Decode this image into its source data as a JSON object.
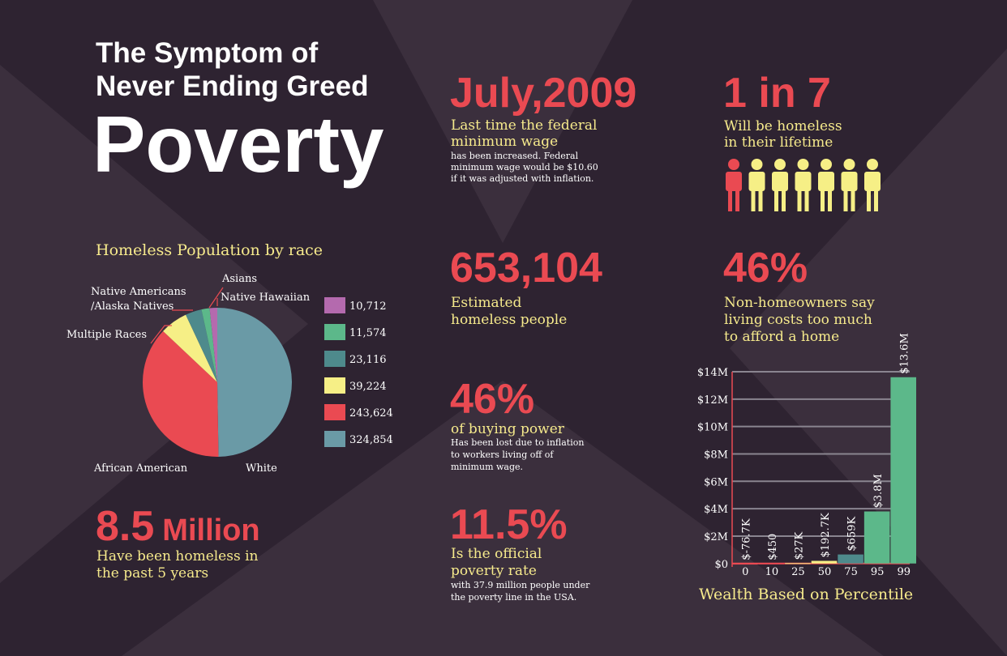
{
  "header": {
    "line1": "The Symptom of",
    "line2": "Never Ending Greed",
    "main": "Poverty"
  },
  "stats": [
    {
      "figure": "July,2009",
      "lines": [
        "Last time the federal",
        "minimum wage"
      ],
      "details": [
        "has been increased. Federal",
        "minimum wage would be $10.60",
        "if it was adjusted with inflation."
      ]
    },
    {
      "figure": "1 in 7",
      "lines": [
        "Will be homeless",
        "in their lifetime"
      ]
    },
    {
      "figure": "653,104",
      "lines": [
        "Estimated",
        "homeless people"
      ]
    },
    {
      "figure": "46%",
      "lines": [
        "Non-homeowners say",
        "living costs too much",
        "to afford a home"
      ]
    },
    {
      "figure": "46%",
      "lines": [
        "of buying power"
      ],
      "details": [
        "Has been lost due to inflation",
        "to workers living off of",
        "minimum wage."
      ]
    },
    {
      "figure": "11.5%",
      "lines": [
        "Is the official",
        "poverty rate"
      ],
      "details": [
        "with 37.9 million people under",
        "the poverty line in the USA."
      ]
    },
    {
      "figure": "8.5",
      "unit": "Million",
      "lines": [
        "Have been homeless in",
        "the past 5 years"
      ]
    }
  ],
  "chart_data": [
    {
      "type": "pie",
      "title": "Homeless Population by race",
      "categories": [
        "White",
        "African American",
        "Multiple Races",
        "Native Americans /Alaska Natives",
        "Asians",
        "Native Hawaiian"
      ],
      "values": [
        324854,
        243624,
        39224,
        23116,
        11574,
        10712
      ],
      "value_labels": [
        "324,854",
        "243,624",
        "39,224",
        "23,116",
        "11,574",
        "10,712"
      ],
      "colors": [
        "#6a9aa6",
        "#ea4a52",
        "#f6ef86",
        "#4e8a8c",
        "#5cb88a",
        "#b46aae"
      ]
    },
    {
      "type": "bar",
      "title": "Wealth Based on Percentile",
      "categories": [
        "0",
        "10",
        "25",
        "50",
        "75",
        "95",
        "99"
      ],
      "values": [
        -76700,
        450,
        27000,
        192700,
        659000,
        3800000,
        13600000
      ],
      "value_labels": [
        "$-76.7K",
        "$450",
        "$27K",
        "$192.7K",
        "$659K",
        "$3.8M",
        "$13.6M"
      ],
      "colors": [
        "#ea4a52",
        "#ea4a52",
        "#f6ef86",
        "#f6ef86",
        "#4e8a8c",
        "#5cb88a",
        "#5cb88a"
      ],
      "ylim": [
        -250000,
        14000000
      ],
      "yticks": [
        {
          "value": 0,
          "label": "$0"
        },
        {
          "value": 2000000,
          "label": "$2M"
        },
        {
          "value": 4000000,
          "label": "$4M"
        },
        {
          "value": 6000000,
          "label": "$6M"
        },
        {
          "value": 8000000,
          "label": "$8M"
        },
        {
          "value": 10000000,
          "label": "$10M"
        },
        {
          "value": 12000000,
          "label": "$12M"
        },
        {
          "value": 14000000,
          "label": "$14M"
        }
      ],
      "grid": true
    }
  ]
}
